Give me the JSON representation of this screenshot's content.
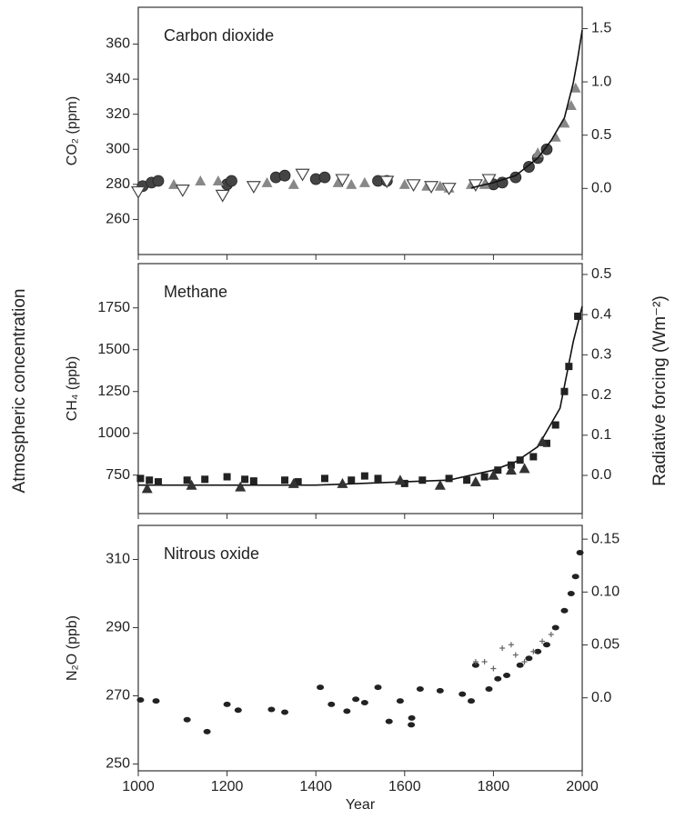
{
  "figure": {
    "ylabel": "Atmospheric concentration",
    "y2label": "Radiative forcing (Wm⁻²)"
  },
  "chart_data": [
    {
      "type": "scatter",
      "title": "Carbon dioxide",
      "ylabel": "CO₂ (ppm)",
      "xlim": [
        1000,
        2000
      ],
      "xticks": [
        1000,
        1200,
        1400,
        1600,
        1800,
        2000
      ],
      "xtick_labels": false,
      "ylim": [
        240,
        381
      ],
      "yticks": [
        260,
        280,
        300,
        320,
        340,
        360
      ],
      "y2lim": [
        -0.62,
        1.7
      ],
      "y2ticks": [
        {
          "value": 0,
          "label": "0.0"
        },
        0.5,
        {
          "value": 1,
          "label": "1.0"
        },
        1.5
      ],
      "series": [
        {
          "marker": "circle",
          "color": "#444",
          "x": [
            1010,
            1030,
            1045,
            1200,
            1210,
            1310,
            1330,
            1400,
            1420,
            1540,
            1560,
            1800,
            1820,
            1850,
            1880,
            1900,
            1920
          ],
          "values": [
            279,
            281,
            282,
            280,
            282,
            284,
            285,
            283,
            284,
            282,
            282,
            280,
            281,
            284,
            290,
            295,
            300
          ]
        },
        {
          "marker": "triangle",
          "color": "#888",
          "x": [
            1080,
            1140,
            1180,
            1290,
            1350,
            1450,
            1480,
            1510,
            1600,
            1650,
            1680,
            1700,
            1750,
            1780,
            1900,
            1940,
            1960,
            1975,
            1985
          ],
          "values": [
            280,
            282,
            282,
            281,
            280,
            281,
            280,
            281,
            280,
            279,
            279,
            278,
            280,
            280,
            298,
            307,
            315,
            325,
            335
          ]
        },
        {
          "marker": "triangle-down",
          "color": "#444",
          "x": [
            1000,
            1100,
            1190,
            1260,
            1370,
            1460,
            1560,
            1620,
            1660,
            1700,
            1760,
            1790
          ],
          "values": [
            276,
            277,
            274,
            279,
            286,
            283,
            282,
            280,
            279,
            278,
            280,
            283
          ]
        },
        {
          "marker": "line",
          "color": "#111",
          "x": [
            1750,
            1800,
            1850,
            1900,
            1930,
            1960,
            1980,
            1990,
            2000
          ],
          "values": [
            278,
            281,
            285,
            295,
            305,
            318,
            338,
            352,
            368
          ]
        }
      ]
    },
    {
      "type": "scatter",
      "title": "Methane",
      "ylabel": "CH₄ (ppb)",
      "xlim": [
        1000,
        2000
      ],
      "xticks": [
        1000,
        1200,
        1400,
        1600,
        1800,
        2000
      ],
      "xtick_labels": false,
      "ylim": [
        520,
        2015
      ],
      "yticks": [
        750,
        1000,
        1250,
        1500,
        1750
      ],
      "y2lim": [
        -0.095,
        0.527
      ],
      "y2ticks": [
        {
          "value": 0,
          "label": "0.0"
        },
        0.1,
        0.2,
        0.3,
        0.4,
        0.5
      ],
      "series": [
        {
          "marker": "line",
          "color": "#111",
          "x": [
            1000,
            1400,
            1700,
            1800,
            1850,
            1900,
            1950,
            1980,
            2000
          ],
          "values": [
            690,
            690,
            720,
            780,
            830,
            920,
            1150,
            1550,
            1760
          ]
        },
        {
          "marker": "square",
          "color": "#222",
          "x": [
            1005,
            1025,
            1045,
            1110,
            1150,
            1200,
            1240,
            1260,
            1330,
            1360,
            1420,
            1480,
            1510,
            1540,
            1600,
            1640,
            1700,
            1740,
            1780,
            1810,
            1840,
            1860,
            1890,
            1920,
            1940,
            1960,
            1970,
            1990
          ],
          "values": [
            730,
            720,
            710,
            720,
            725,
            740,
            725,
            715,
            720,
            710,
            730,
            720,
            745,
            730,
            700,
            720,
            730,
            720,
            740,
            780,
            810,
            840,
            860,
            940,
            1050,
            1250,
            1400,
            1700
          ]
        },
        {
          "marker": "triangle",
          "color": "#333",
          "x": [
            1020,
            1120,
            1230,
            1350,
            1460,
            1590,
            1680,
            1760,
            1800,
            1840,
            1870,
            1910
          ],
          "values": [
            670,
            690,
            680,
            700,
            700,
            720,
            690,
            710,
            750,
            780,
            790,
            950
          ]
        }
      ]
    },
    {
      "type": "scatter",
      "title": "Nitrous oxide",
      "ylabel": "N₂O (ppb)",
      "xlabel": "Year",
      "xlim": [
        1000,
        2000
      ],
      "xticks": [
        1000,
        1200,
        1400,
        1600,
        1800,
        2000
      ],
      "xtick_labels": true,
      "ylim": [
        248,
        320
      ],
      "yticks": [
        250,
        270,
        290,
        310
      ],
      "y2lim": [
        -0.069,
        0.163
      ],
      "y2ticks": [
        {
          "value": 0,
          "label": "0.0"
        },
        0.05,
        {
          "value": 0.1,
          "label": "0.10"
        },
        0.15
      ],
      "series": [
        {
          "marker": "dot",
          "color": "#222",
          "x": [
            1005,
            1040,
            1110,
            1155,
            1200,
            1225,
            1300,
            1330,
            1410,
            1435,
            1470,
            1490,
            1510,
            1540,
            1565,
            1590,
            1615,
            1616,
            1635,
            1680,
            1730,
            1750,
            1760,
            1790,
            1810,
            1830,
            1860,
            1880,
            1900,
            1920,
            1940,
            1960,
            1975,
            1985,
            1995
          ],
          "values": [
            268.8,
            268.5,
            263,
            259.5,
            267.5,
            265.8,
            266,
            265.2,
            272.5,
            267.5,
            265.5,
            269,
            268,
            272.5,
            262.5,
            268.5,
            261.5,
            263.5,
            272,
            271.5,
            270.5,
            268.5,
            279,
            272,
            275,
            276,
            279,
            281,
            283,
            285,
            290,
            295,
            300,
            305,
            312
          ]
        },
        {
          "marker": "plus",
          "color": "#666",
          "x": [
            1760,
            1780,
            1800,
            1820,
            1840,
            1850,
            1870,
            1890,
            1910,
            1930
          ],
          "values": [
            280,
            280,
            278,
            284,
            285,
            282,
            280,
            283,
            286,
            288
          ]
        }
      ]
    }
  ]
}
